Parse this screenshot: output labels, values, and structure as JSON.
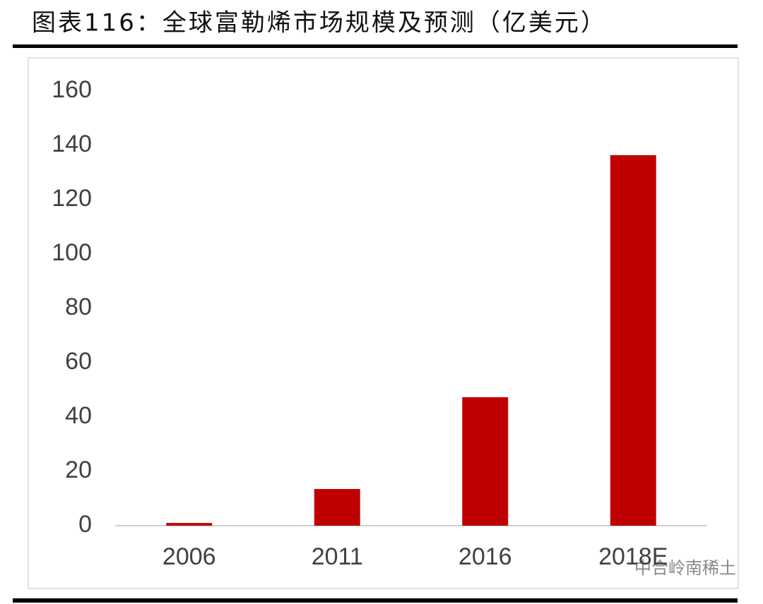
{
  "chart_data": {
    "type": "bar",
    "title": "图表116：全球富勒烯市场规模及预测（亿美元）",
    "categories": [
      "2006",
      "2011",
      "2016",
      "2018E"
    ],
    "values": [
      1,
      13.5,
      47.3,
      136.4
    ],
    "color": "#c00000",
    "ylim": [
      0,
      160
    ],
    "yticks": [
      0,
      20,
      40,
      60,
      80,
      100,
      120,
      140,
      160
    ],
    "grid": false,
    "watermark": "中合岭南稀土"
  }
}
